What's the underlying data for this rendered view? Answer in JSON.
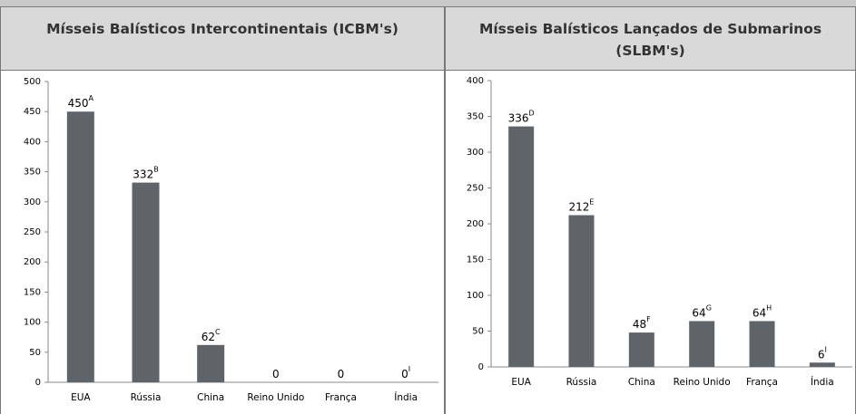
{
  "chart_data": [
    {
      "type": "bar",
      "title": "Mísseis Balísticos Intercontinentais (ICBM's)",
      "categories": [
        "EUA",
        "Rússia",
        "China",
        "Reino Unido",
        "França",
        "Índia"
      ],
      "values": [
        450,
        332,
        62,
        0,
        0,
        0
      ],
      "notes": [
        "A",
        "B",
        "C",
        null,
        null,
        "I"
      ],
      "color": "#5f6468",
      "ylim": [
        0,
        500
      ],
      "yticks": [
        0,
        50,
        100,
        150,
        200,
        250,
        300,
        350,
        400,
        450,
        500
      ]
    },
    {
      "type": "bar",
      "title": "Mísseis Balísticos Lançados de Submarinos (SLBM's)",
      "categories": [
        "EUA",
        "Rússia",
        "China",
        "Reino Unido",
        "França",
        "Índia"
      ],
      "values": [
        336,
        212,
        48,
        64,
        64,
        6
      ],
      "notes": [
        "D",
        "E",
        "F",
        "G",
        "H",
        "I"
      ],
      "color": "#5f6468",
      "ylim": [
        0,
        400
      ],
      "yticks": [
        0,
        50,
        100,
        150,
        200,
        250,
        300,
        350,
        400
      ]
    }
  ]
}
